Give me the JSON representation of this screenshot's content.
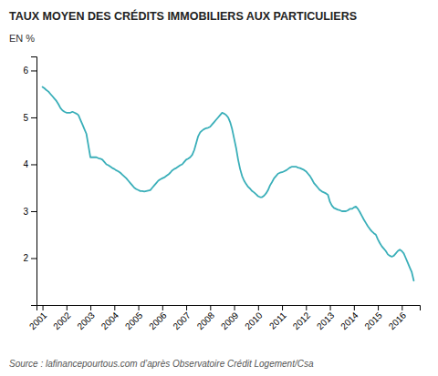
{
  "chart_data": {
    "type": "line",
    "title": "TAUX MOYEN DES CRÉDITS IMMOBILIERS AUX PARTICULIERS",
    "ylabel": "EN %",
    "source": "Source : lafinancepourtous.com d’après Observatoire Crédit Logement/Csa",
    "color": "#3aafb9",
    "xlim": [
      2000.75,
      2016.75
    ],
    "xticks": [
      2001,
      2002,
      2003,
      2004,
      2005,
      2006,
      2007,
      2008,
      2009,
      2010,
      2011,
      2012,
      2013,
      2014,
      2015,
      2016
    ],
    "ylim": [
      1,
      6.3
    ],
    "yticks": [
      2,
      3,
      4,
      5,
      6
    ],
    "grid": false,
    "x": [
      2001.0,
      2001.083,
      2001.167,
      2001.25,
      2001.333,
      2001.417,
      2001.5,
      2001.583,
      2001.667,
      2001.75,
      2001.833,
      2001.917,
      2002.0,
      2002.083,
      2002.167,
      2002.25,
      2002.333,
      2002.417,
      2002.5,
      2002.583,
      2002.667,
      2002.75,
      2002.833,
      2002.917,
      2003.0,
      2003.083,
      2003.167,
      2003.25,
      2003.333,
      2003.417,
      2003.5,
      2003.583,
      2003.667,
      2003.75,
      2003.833,
      2003.917,
      2004.0,
      2004.083,
      2004.167,
      2004.25,
      2004.333,
      2004.417,
      2004.5,
      2004.583,
      2004.667,
      2004.75,
      2004.833,
      2004.917,
      2005.0,
      2005.083,
      2005.167,
      2005.25,
      2005.333,
      2005.417,
      2005.5,
      2005.583,
      2005.667,
      2005.75,
      2005.833,
      2005.917,
      2006.0,
      2006.083,
      2006.167,
      2006.25,
      2006.333,
      2006.417,
      2006.5,
      2006.583,
      2006.667,
      2006.75,
      2006.833,
      2006.917,
      2007.0,
      2007.083,
      2007.167,
      2007.25,
      2007.333,
      2007.417,
      2007.5,
      2007.583,
      2007.667,
      2007.75,
      2007.833,
      2007.917,
      2008.0,
      2008.083,
      2008.167,
      2008.25,
      2008.333,
      2008.417,
      2008.5,
      2008.583,
      2008.667,
      2008.75,
      2008.833,
      2008.917,
      2009.0,
      2009.083,
      2009.167,
      2009.25,
      2009.333,
      2009.417,
      2009.5,
      2009.583,
      2009.667,
      2009.75,
      2009.833,
      2009.917,
      2010.0,
      2010.083,
      2010.167,
      2010.25,
      2010.333,
      2010.417,
      2010.5,
      2010.583,
      2010.667,
      2010.75,
      2010.833,
      2010.917,
      2011.0,
      2011.083,
      2011.167,
      2011.25,
      2011.333,
      2011.417,
      2011.5,
      2011.583,
      2011.667,
      2011.75,
      2011.833,
      2011.917,
      2012.0,
      2012.083,
      2012.167,
      2012.25,
      2012.333,
      2012.417,
      2012.5,
      2012.583,
      2012.667,
      2012.75,
      2012.833,
      2012.917,
      2013.0,
      2013.083,
      2013.167,
      2013.25,
      2013.333,
      2013.417,
      2013.5,
      2013.583,
      2013.667,
      2013.75,
      2013.833,
      2013.917,
      2014.0,
      2014.083,
      2014.167,
      2014.25,
      2014.333,
      2014.417,
      2014.5,
      2014.583,
      2014.667,
      2014.75,
      2014.833,
      2014.917,
      2015.0,
      2015.083,
      2015.167,
      2015.25,
      2015.333,
      2015.417,
      2015.5,
      2015.583,
      2015.667,
      2015.75,
      2015.833,
      2015.917,
      2016.0,
      2016.083,
      2016.167,
      2016.25,
      2016.333,
      2016.417,
      2016.5
    ],
    "values": [
      5.65,
      5.62,
      5.58,
      5.55,
      5.5,
      5.45,
      5.4,
      5.35,
      5.28,
      5.2,
      5.15,
      5.12,
      5.1,
      5.1,
      5.1,
      5.12,
      5.1,
      5.08,
      5.05,
      4.95,
      4.85,
      4.75,
      4.65,
      4.4,
      4.15,
      4.15,
      4.15,
      4.15,
      4.13,
      4.12,
      4.1,
      4.05,
      4.0,
      3.98,
      3.95,
      3.92,
      3.9,
      3.87,
      3.85,
      3.82,
      3.78,
      3.74,
      3.7,
      3.65,
      3.6,
      3.55,
      3.5,
      3.47,
      3.45,
      3.43,
      3.43,
      3.42,
      3.43,
      3.44,
      3.45,
      3.5,
      3.55,
      3.6,
      3.65,
      3.68,
      3.7,
      3.72,
      3.75,
      3.78,
      3.82,
      3.87,
      3.9,
      3.92,
      3.95,
      3.98,
      4.0,
      4.05,
      4.1,
      4.12,
      4.15,
      4.2,
      4.3,
      4.45,
      4.6,
      4.68,
      4.72,
      4.75,
      4.77,
      4.78,
      4.8,
      4.85,
      4.9,
      4.95,
      5.0,
      5.05,
      5.1,
      5.08,
      5.05,
      5.0,
      4.9,
      4.75,
      4.55,
      4.35,
      4.1,
      3.9,
      3.75,
      3.65,
      3.58,
      3.52,
      3.48,
      3.43,
      3.4,
      3.36,
      3.32,
      3.3,
      3.3,
      3.33,
      3.38,
      3.45,
      3.55,
      3.62,
      3.7,
      3.75,
      3.8,
      3.82,
      3.83,
      3.85,
      3.87,
      3.9,
      3.93,
      3.95,
      3.95,
      3.95,
      3.93,
      3.92,
      3.9,
      3.88,
      3.85,
      3.8,
      3.75,
      3.68,
      3.6,
      3.55,
      3.5,
      3.45,
      3.42,
      3.4,
      3.38,
      3.35,
      3.2,
      3.12,
      3.07,
      3.05,
      3.03,
      3.02,
      3.0,
      3.0,
      3.0,
      3.02,
      3.05,
      3.05,
      3.08,
      3.1,
      3.05,
      2.98,
      2.9,
      2.82,
      2.75,
      2.68,
      2.62,
      2.57,
      2.53,
      2.5,
      2.4,
      2.32,
      2.25,
      2.2,
      2.15,
      2.08,
      2.05,
      2.03,
      2.05,
      2.1,
      2.15,
      2.18,
      2.15,
      2.1,
      2.0,
      1.9,
      1.8,
      1.7,
      1.52
    ]
  }
}
